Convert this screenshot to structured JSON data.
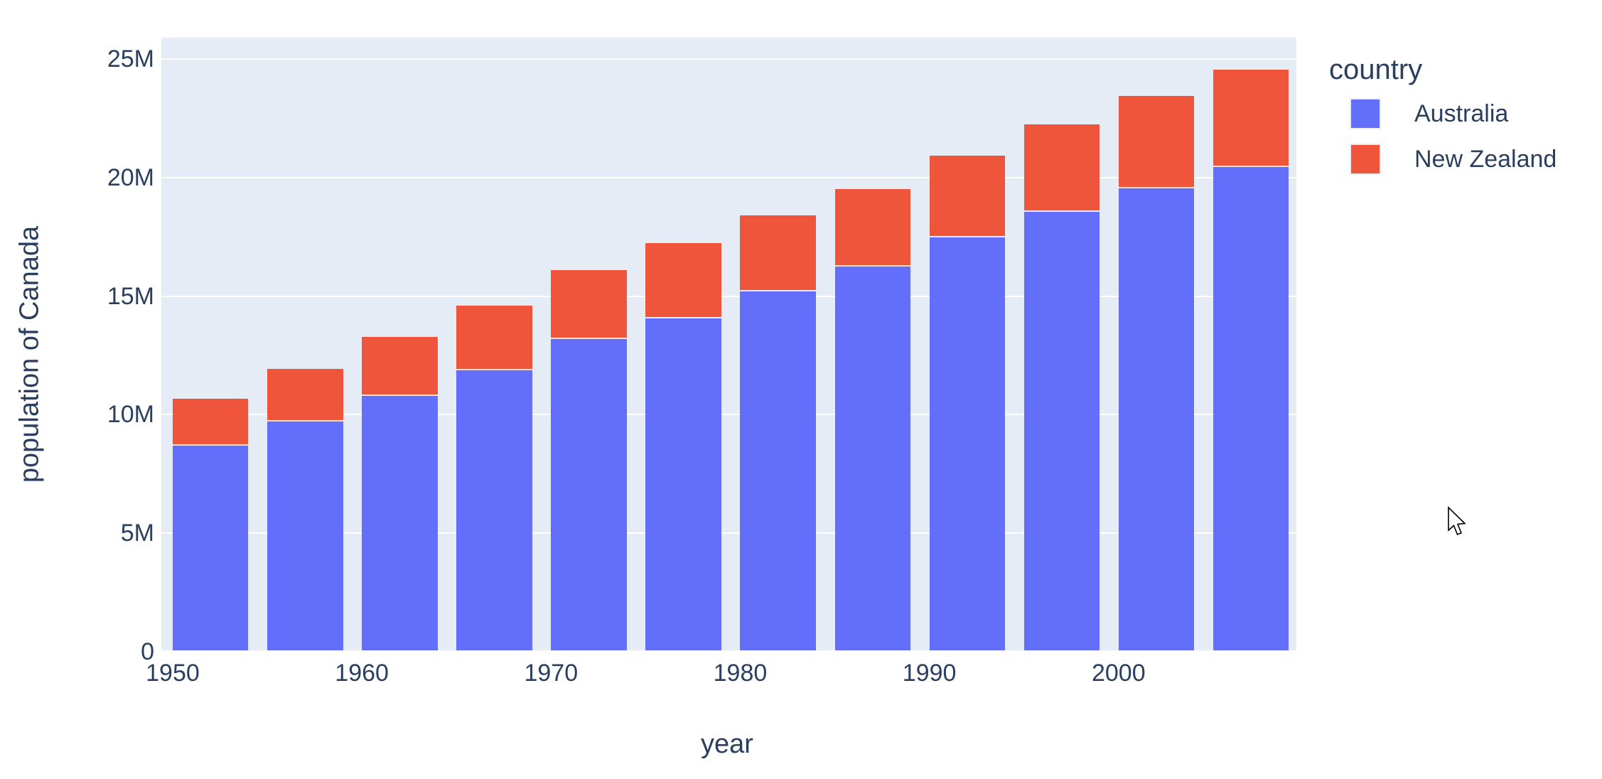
{
  "chart_data": {
    "type": "bar",
    "stacked": true,
    "title": "",
    "xlabel": "year",
    "ylabel": "population of Canada",
    "categories": [
      1952,
      1957,
      1962,
      1967,
      1972,
      1977,
      1982,
      1987,
      1992,
      1997,
      2002,
      2007
    ],
    "series": [
      {
        "name": "Australia",
        "color": "#636EFA",
        "values": [
          8691212,
          9712569,
          10794968,
          11872264,
          13177000,
          14074100,
          15184200,
          16257249,
          17481977,
          18565243,
          19546792,
          20434176
        ]
      },
      {
        "name": "New Zealand",
        "color": "#EF553B",
        "values": [
          1994794,
          2229407,
          2488550,
          2728150,
          2929100,
          3164900,
          3210650,
          3266792,
          3437674,
          3676187,
          3908037,
          4115771
        ]
      }
    ],
    "legend": {
      "title": "country",
      "position": "right",
      "entries": [
        "Australia",
        "New Zealand"
      ]
    },
    "x_ticks": [
      {
        "value": 1950,
        "label": "1950"
      },
      {
        "value": 1960,
        "label": "1960"
      },
      {
        "value": 1970,
        "label": "1970"
      },
      {
        "value": 1980,
        "label": "1980"
      },
      {
        "value": 1990,
        "label": "1990"
      },
      {
        "value": 2000,
        "label": "2000"
      }
    ],
    "y_ticks": [
      {
        "value": 0,
        "label": "0"
      },
      {
        "value": 5000000,
        "label": "5M"
      },
      {
        "value": 10000000,
        "label": "10M"
      },
      {
        "value": 15000000,
        "label": "15M"
      },
      {
        "value": 20000000,
        "label": "20M"
      },
      {
        "value": 25000000,
        "label": "25M"
      }
    ],
    "x_range": [
      1949.4,
      2009.4
    ],
    "y_range": [
      0,
      25900000
    ],
    "bar_width_years": 4,
    "grid": true
  },
  "colors": {
    "text": "#2A3F5F",
    "plot_background": "#E5ECF6",
    "gridline": "#FFFFFF",
    "page_background": "#FFFFFF",
    "australia": "#636EFA",
    "new_zealand": "#EF553B"
  }
}
